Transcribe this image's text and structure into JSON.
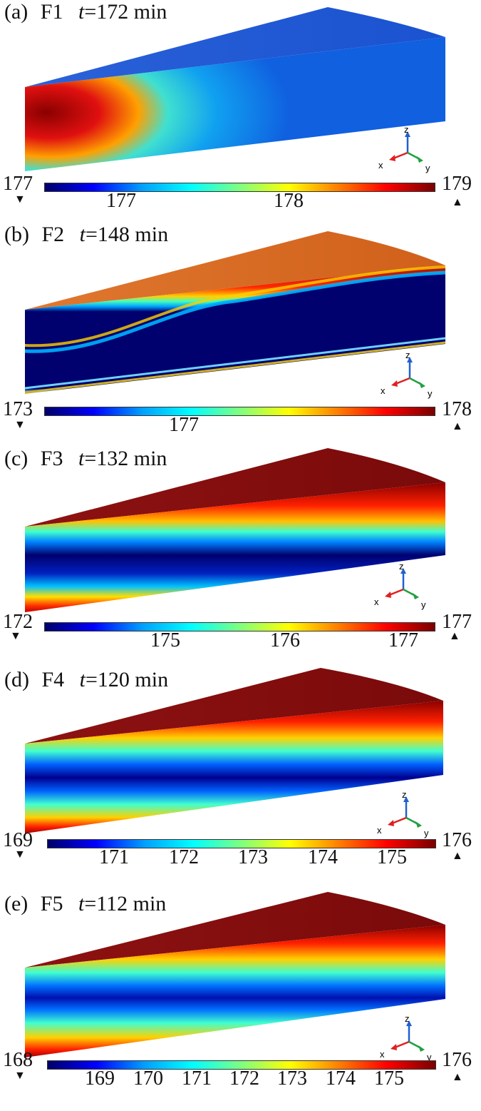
{
  "panels": [
    {
      "letter": "(a)",
      "name": "F1",
      "t_var": "t",
      "t_rest": "=172 min",
      "cb_min": "177",
      "cb_max": "179",
      "ticks": [
        "177",
        "178"
      ]
    },
    {
      "letter": "(b)",
      "name": "F2",
      "t_var": "t",
      "t_rest": "=148 min",
      "cb_min": "173",
      "cb_max": "178",
      "ticks": [
        "177"
      ]
    },
    {
      "letter": "(c)",
      "name": "F3",
      "t_var": "t",
      "t_rest": "=132 min",
      "cb_min": "172",
      "cb_max": "177",
      "ticks": [
        "175",
        "176",
        "177"
      ]
    },
    {
      "letter": "(d)",
      "name": "F4",
      "t_var": "t",
      "t_rest": "=120 min",
      "cb_min": "169",
      "cb_max": "176",
      "ticks": [
        "171",
        "172",
        "173",
        "174",
        "175"
      ]
    },
    {
      "letter": "(e)",
      "name": "F5",
      "t_var": "t",
      "t_rest": "=112 min",
      "cb_min": "168",
      "cb_max": "176",
      "ticks": [
        "169",
        "170",
        "171",
        "172",
        "173",
        "174",
        "175"
      ]
    }
  ],
  "axes_labels": {
    "x": "x",
    "y": "y",
    "z": "z"
  },
  "colors": {
    "blue_deep": "#00006e",
    "red_deep": "#7a0000",
    "orange_top": "#d9661e",
    "triad_x": "#e02020",
    "triad_y": "#20a040",
    "triad_z": "#2060d0"
  }
}
